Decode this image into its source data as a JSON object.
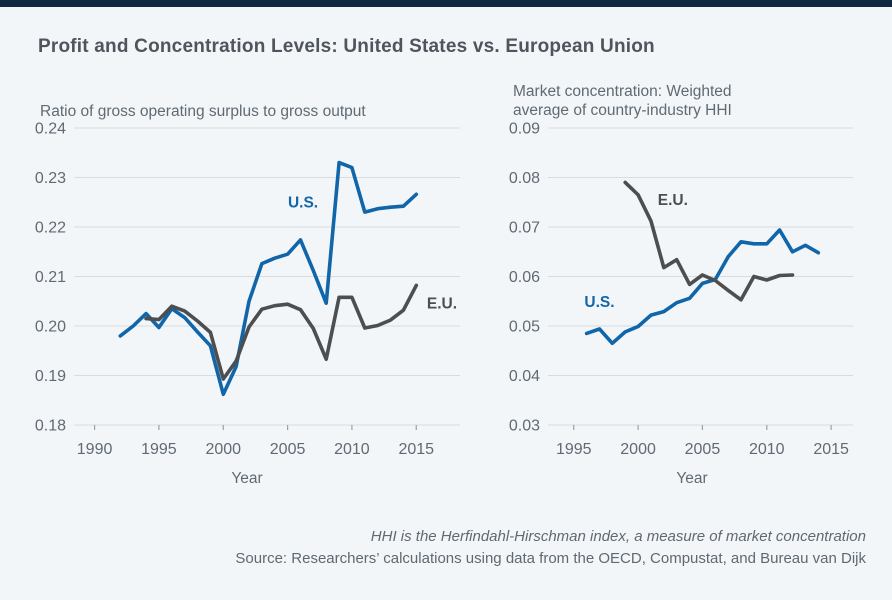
{
  "page": {
    "title": "Profit and Concentration Levels: United States vs. European Union",
    "background": "#f3f6f9",
    "top_bar_color": "#122740"
  },
  "colors": {
    "us_line": "#1066a9",
    "eu_line": "#4c4e50",
    "gridline": "#d8dcdf",
    "tick": "#99a1a7",
    "axis_text": "#606a72",
    "title_text": "#4e555c",
    "footer_text": "#5f6971"
  },
  "footer": {
    "note": "HHI is the Herfindahl-Hirschman index, a measure of market concentration",
    "source": "Source: Researchers’ calculations using data from the OECD, Compustat, and Bureau van Dijk"
  },
  "chart_data": [
    {
      "type": "line",
      "title": "Ratio of gross operating surplus to gross output",
      "xlabel": "Year",
      "ylim": [
        0.18,
        0.24
      ],
      "xlim": [
        1988.4,
        2018.4
      ],
      "grid": true,
      "yticks": [
        "0.24",
        "0.23",
        "0.22",
        "0.21",
        "0.20",
        "0.19",
        "0.18"
      ],
      "xticks": [
        "1990",
        "1995",
        "2000",
        "2005",
        "2010",
        "2015"
      ],
      "series": [
        {
          "name": "U.S.",
          "color": "#1066a9",
          "label_at": [
            2006.2,
            0.2249
          ],
          "x": [
            1992,
            1993,
            1994,
            1995,
            1996,
            1997,
            1998,
            1999,
            2000,
            2001,
            2002,
            2003,
            2004,
            2005,
            2006,
            2007,
            2008,
            2009,
            2010,
            2011,
            2012,
            2013,
            2014,
            2015
          ],
          "y": [
            0.198,
            0.2,
            0.2025,
            0.1997,
            0.2035,
            0.2017,
            0.1988,
            0.196,
            0.1862,
            0.1918,
            0.205,
            0.2126,
            0.2137,
            0.2145,
            0.2174,
            0.2112,
            0.2046,
            0.233,
            0.232,
            0.223,
            0.2237,
            0.224,
            0.2242,
            0.2266
          ]
        },
        {
          "name": "E.U.",
          "color": "#4c4e50",
          "label_at": [
            2017.0,
            0.2045
          ],
          "x": [
            1994,
            1995,
            1996,
            1997,
            1998,
            1999,
            2000,
            2001,
            2002,
            2003,
            2004,
            2005,
            2006,
            2007,
            2008,
            2009,
            2010,
            2011,
            2012,
            2013,
            2014,
            2015
          ],
          "y": [
            0.2015,
            0.2013,
            0.204,
            0.203,
            0.201,
            0.1987,
            0.1893,
            0.1929,
            0.1998,
            0.2034,
            0.2041,
            0.2044,
            0.2033,
            0.1995,
            0.1933,
            0.2058,
            0.2058,
            0.1996,
            0.2001,
            0.2012,
            0.2032,
            0.2082
          ]
        }
      ]
    },
    {
      "type": "line",
      "title": "Market concentration: Weighted average of country-industry HHI",
      "xlabel": "Year",
      "ylim": [
        0.03,
        0.09
      ],
      "xlim": [
        1993.0,
        2016.7
      ],
      "grid": true,
      "yticks": [
        "0.09",
        "0.08",
        "0.07",
        "0.06",
        "0.05",
        "0.04",
        "0.03"
      ],
      "xticks": [
        "1995",
        "2000",
        "2005",
        "2010",
        "2015"
      ],
      "series": [
        {
          "name": "U.S.",
          "color": "#1066a9",
          "label_at": [
            1997.0,
            0.0548
          ],
          "x": [
            1996,
            1997,
            1998,
            1999,
            2000,
            2001,
            2002,
            2003,
            2004,
            2005,
            2006,
            2007,
            2008,
            2009,
            2010,
            2011,
            2012,
            2013,
            2014
          ],
          "y": [
            0.0485,
            0.0494,
            0.0465,
            0.0488,
            0.0499,
            0.0522,
            0.0529,
            0.0547,
            0.0556,
            0.0586,
            0.0594,
            0.064,
            0.067,
            0.0666,
            0.0666,
            0.0694,
            0.065,
            0.0663,
            0.0648
          ]
        },
        {
          "name": "E.U.",
          "color": "#4c4e50",
          "label_at": [
            2002.7,
            0.0755
          ],
          "x": [
            1999,
            2000,
            2001,
            2002,
            2003,
            2004,
            2005,
            2006,
            2007,
            2008,
            2009,
            2010,
            2011,
            2012
          ],
          "y": [
            0.079,
            0.0765,
            0.0712,
            0.0618,
            0.0634,
            0.0584,
            0.0603,
            0.0592,
            0.0572,
            0.0553,
            0.06,
            0.0593,
            0.0602,
            0.0603
          ]
        }
      ]
    }
  ]
}
